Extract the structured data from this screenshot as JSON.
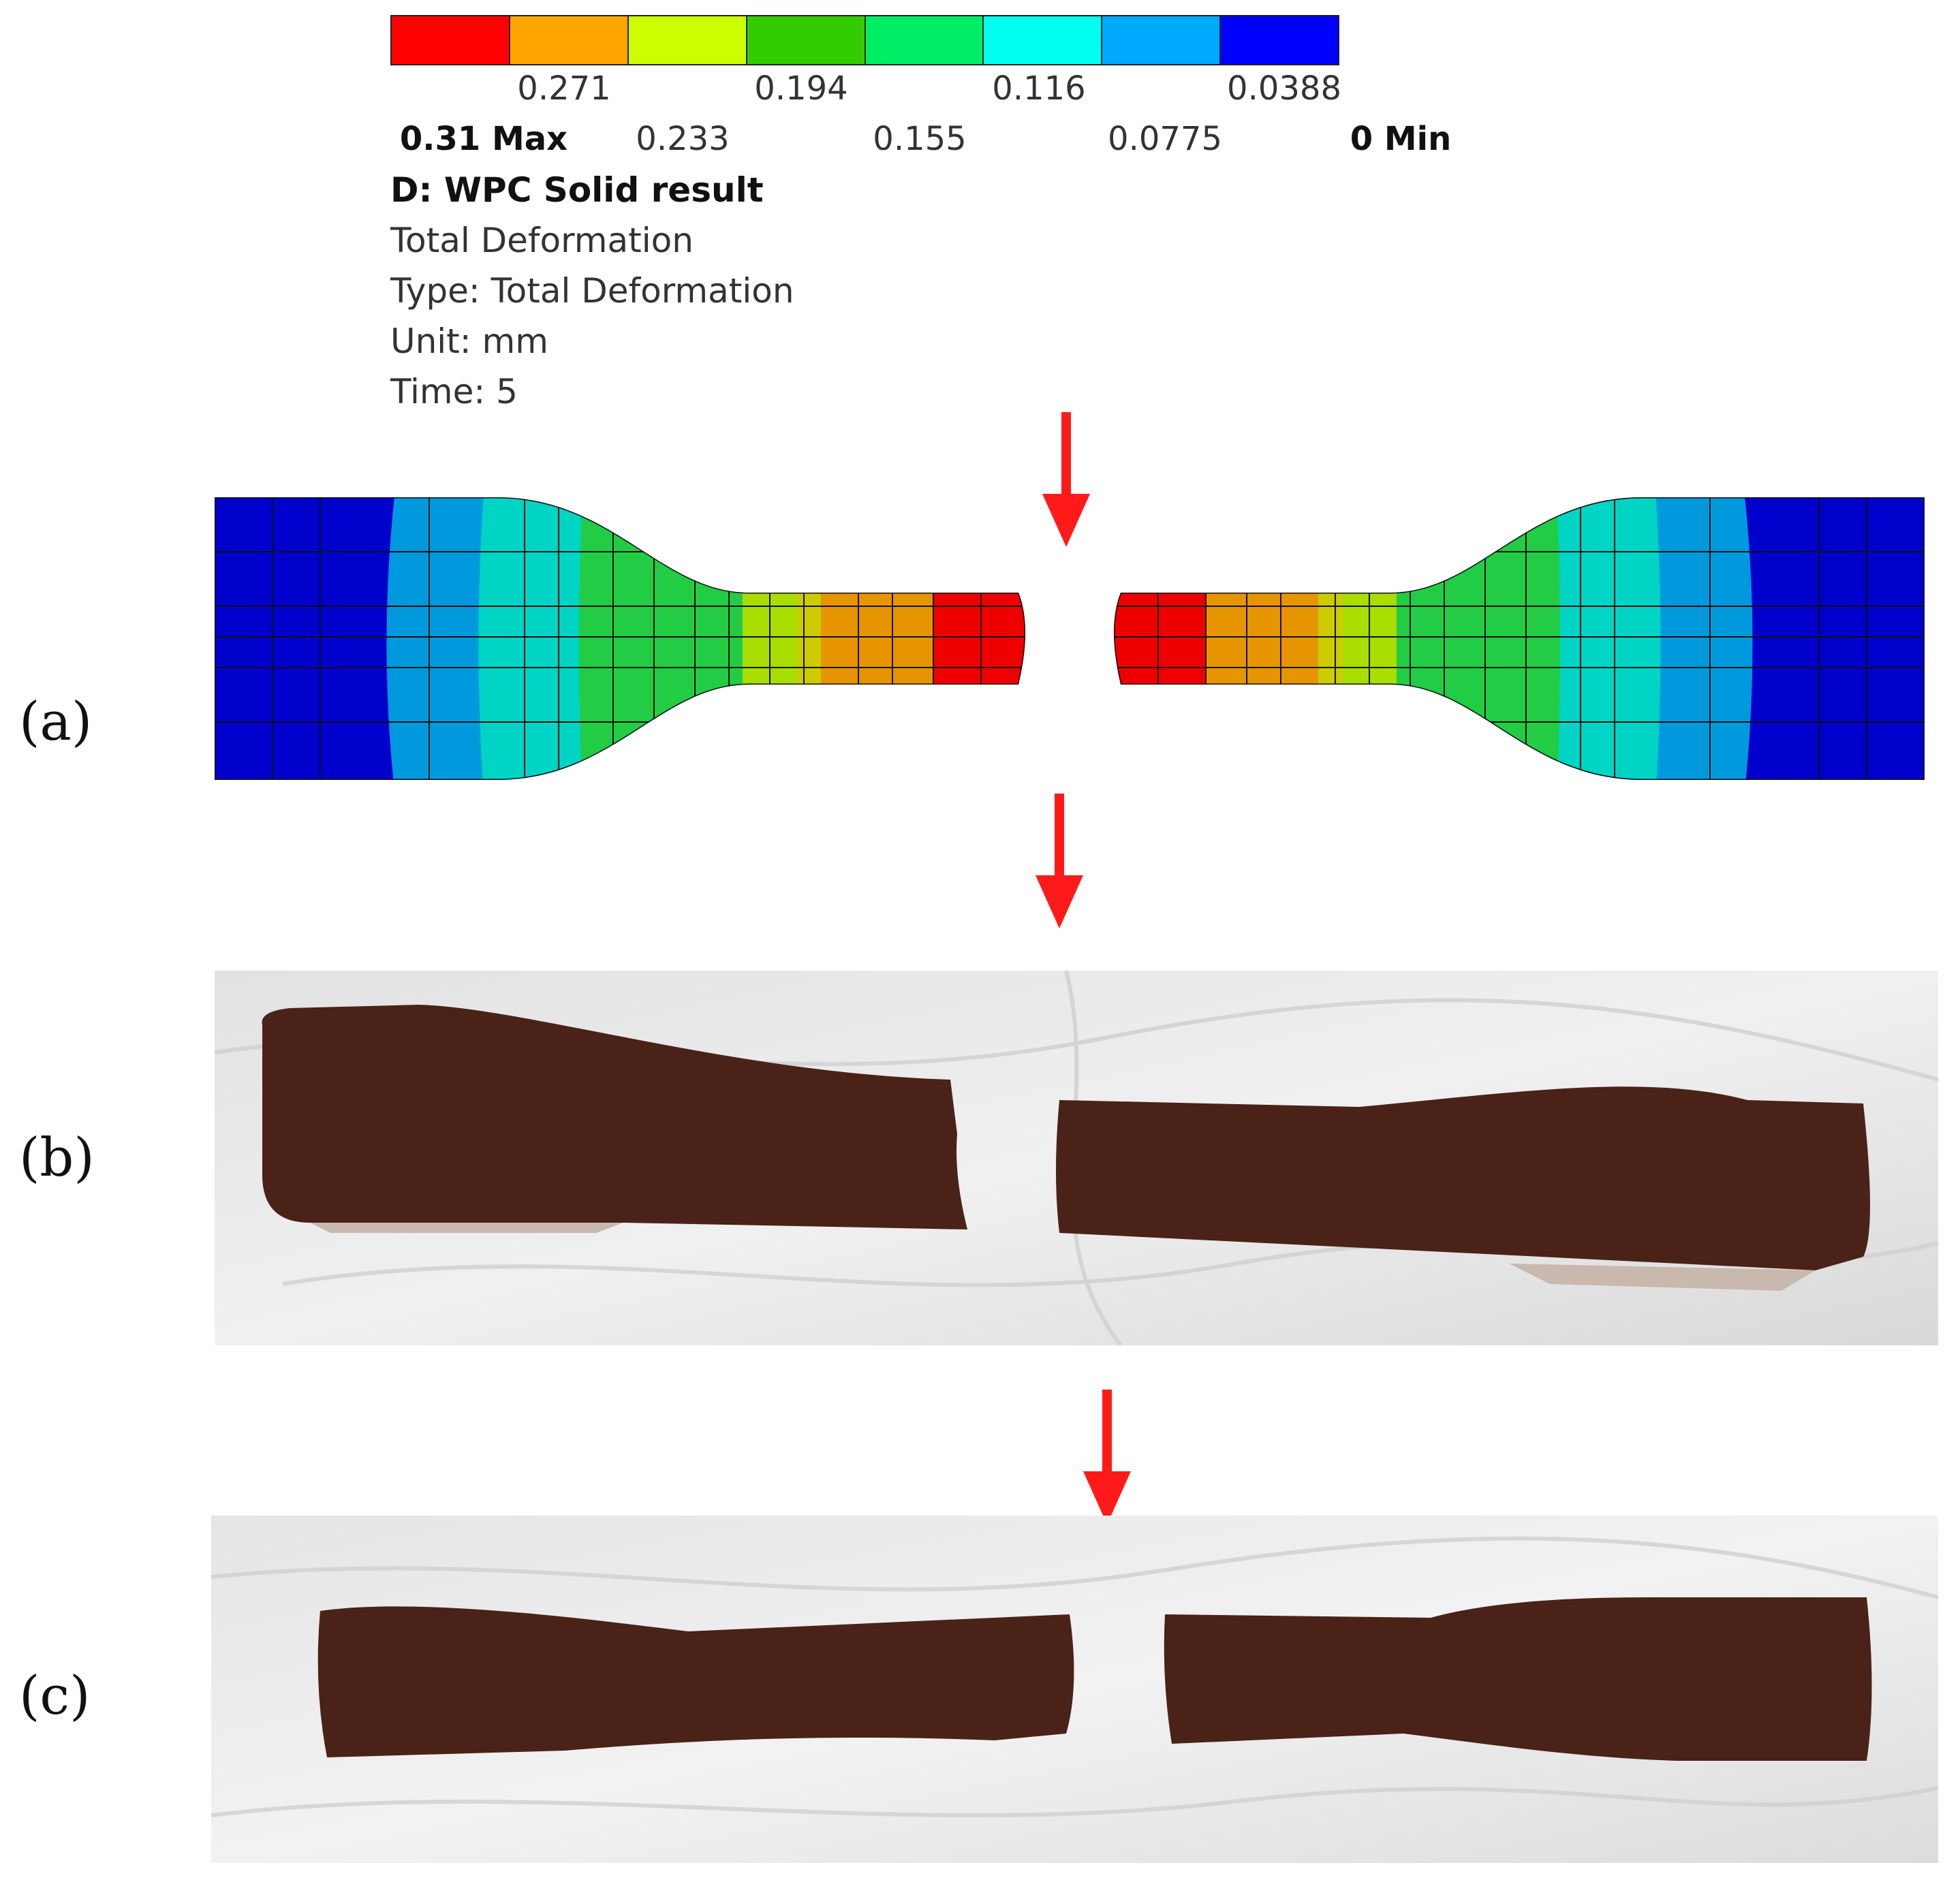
{
  "legend": {
    "colors": [
      "#ff0000",
      "#ffa500",
      "#ccff00",
      "#33cc00",
      "#00ee66",
      "#00ffee",
      "#00aaff",
      "#0000ff"
    ],
    "upper_ticks": [
      "0.271",
      "0.194",
      "0.116",
      "0.0388"
    ],
    "lower_ticks": [
      "0.31 Max",
      "0.233",
      "0.155",
      "0.0775",
      "0 Min"
    ]
  },
  "result_info": {
    "title": "D: WPC Solid result",
    "line1": "Total Deformation",
    "line2": "Type: Total Deformation",
    "line3": "Unit: mm",
    "line4": "Time: 5"
  },
  "panels": {
    "a": "(a)",
    "b": "(b)",
    "c": "(c)"
  },
  "colors": {
    "arrow": "#ff1a1a",
    "specimen": "#4a2218",
    "tissue": "#e9e9e9"
  }
}
